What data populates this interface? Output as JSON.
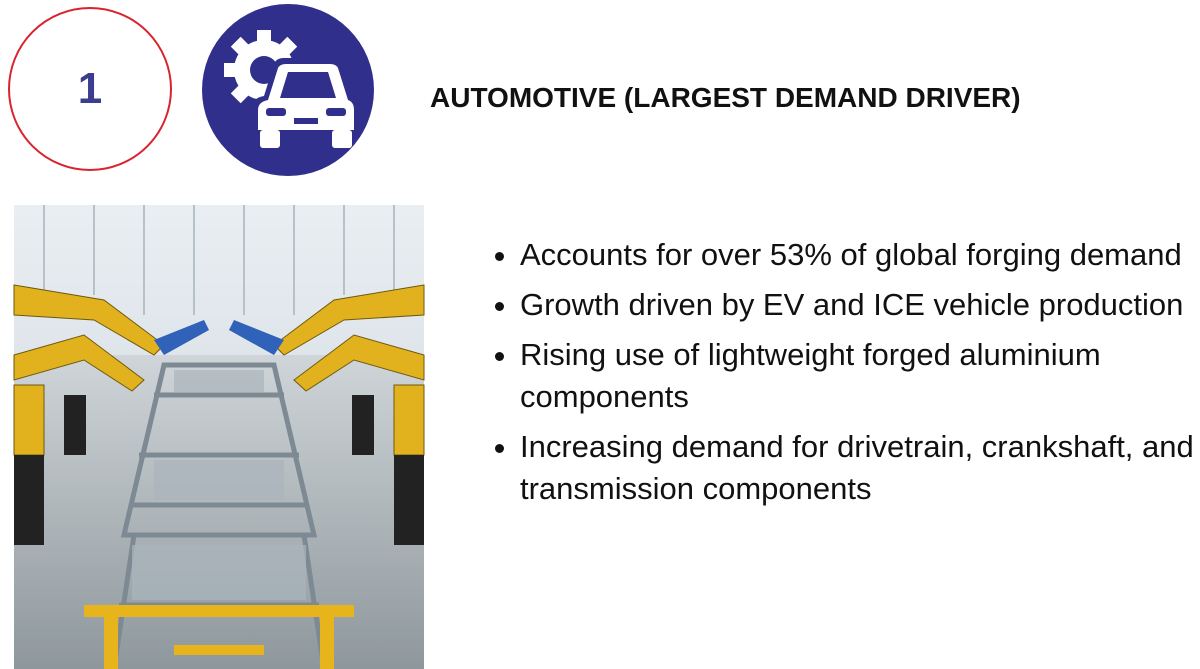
{
  "number": "1",
  "title": "AUTOMOTIVE (LARGEST DEMAND DRIVER)",
  "bullets": [
    "Accounts for over 53% of global forging demand",
    "Growth driven by EV and ICE vehicle production",
    "Rising use of lightweight forged aluminium components",
    "Increasing demand for drivetrain, crankshaft, and transmission components"
  ]
}
